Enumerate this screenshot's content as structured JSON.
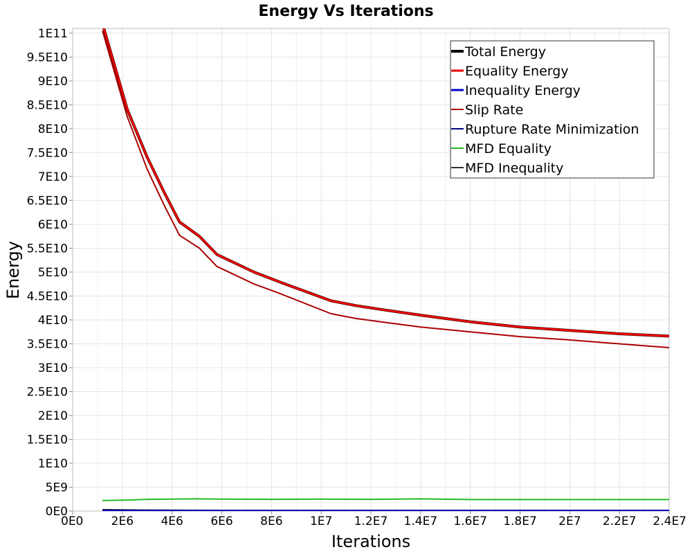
{
  "chart_data": {
    "type": "line",
    "title": "Energy Vs Iterations",
    "xlabel": "Iterations",
    "ylabel": "Energy",
    "xlim": [
      0,
      24000000
    ],
    "ylim": [
      0,
      101000000000
    ],
    "grid": true,
    "legend_position": "top-right",
    "x_ticks": [
      {
        "value": 0,
        "label": "0E0"
      },
      {
        "value": 2000000,
        "label": "2E6"
      },
      {
        "value": 4000000,
        "label": "4E6"
      },
      {
        "value": 6000000,
        "label": "6E6"
      },
      {
        "value": 8000000,
        "label": "8E6"
      },
      {
        "value": 10000000,
        "label": "1E7"
      },
      {
        "value": 12000000,
        "label": "1.2E7"
      },
      {
        "value": 14000000,
        "label": "1.4E7"
      },
      {
        "value": 16000000,
        "label": "1.6E7"
      },
      {
        "value": 18000000,
        "label": "1.8E7"
      },
      {
        "value": 20000000,
        "label": "2E7"
      },
      {
        "value": 22000000,
        "label": "2.2E7"
      },
      {
        "value": 24000000,
        "label": "2.4E7"
      }
    ],
    "y_ticks": [
      {
        "value": 0,
        "label": "0E0"
      },
      {
        "value": 5000000000,
        "label": "5E9"
      },
      {
        "value": 10000000000,
        "label": "1E10"
      },
      {
        "value": 15000000000,
        "label": "1.5E10"
      },
      {
        "value": 20000000000,
        "label": "2E10"
      },
      {
        "value": 25000000000,
        "label": "2.5E10"
      },
      {
        "value": 30000000000,
        "label": "3E10"
      },
      {
        "value": 35000000000,
        "label": "3.5E10"
      },
      {
        "value": 40000000000,
        "label": "4E10"
      },
      {
        "value": 45000000000,
        "label": "4.5E10"
      },
      {
        "value": 50000000000,
        "label": "5E10"
      },
      {
        "value": 55000000000,
        "label": "5.5E10"
      },
      {
        "value": 60000000000,
        "label": "6E10"
      },
      {
        "value": 65000000000,
        "label": "6.5E10"
      },
      {
        "value": 70000000000,
        "label": "7E10"
      },
      {
        "value": 75000000000,
        "label": "7.5E10"
      },
      {
        "value": 80000000000,
        "label": "8E10"
      },
      {
        "value": 85000000000,
        "label": "8.5E10"
      },
      {
        "value": 90000000000,
        "label": "9E10"
      },
      {
        "value": 95000000000,
        "label": "9.5E10"
      },
      {
        "value": 100000000000,
        "label": "1E11"
      }
    ],
    "series": [
      {
        "name": "Total Energy",
        "color": "#000000",
        "width": 4,
        "points": [
          [
            1200000,
            102000000000
          ],
          [
            2200000,
            84000000000
          ],
          [
            3000000,
            74000000000
          ],
          [
            3700000,
            66500000000
          ],
          [
            4300000,
            60500000000
          ],
          [
            5100000,
            57500000000
          ],
          [
            5800000,
            53700000000
          ],
          [
            7300000,
            50000000000
          ],
          [
            8500000,
            47600000000
          ],
          [
            10400000,
            44000000000
          ],
          [
            11400000,
            43000000000
          ],
          [
            12400000,
            42200000000
          ],
          [
            14000000,
            41000000000
          ],
          [
            16000000,
            39600000000
          ],
          [
            18000000,
            38500000000
          ],
          [
            20000000,
            37800000000
          ],
          [
            22000000,
            37100000000
          ],
          [
            24000000,
            36600000000
          ]
        ]
      },
      {
        "name": "Equality Energy",
        "color": "#ee0000",
        "width": 3,
        "points": [
          [
            1200000,
            102000000000
          ],
          [
            2200000,
            84000000000
          ],
          [
            3000000,
            74000000000
          ],
          [
            3700000,
            66500000000
          ],
          [
            4300000,
            60500000000
          ],
          [
            5100000,
            57500000000
          ],
          [
            5800000,
            53700000000
          ],
          [
            7300000,
            50000000000
          ],
          [
            8500000,
            47600000000
          ],
          [
            10400000,
            44000000000
          ],
          [
            11400000,
            43000000000
          ],
          [
            12400000,
            42200000000
          ],
          [
            14000000,
            41000000000
          ],
          [
            16000000,
            39600000000
          ],
          [
            18000000,
            38500000000
          ],
          [
            20000000,
            37800000000
          ],
          [
            22000000,
            37100000000
          ],
          [
            24000000,
            36600000000
          ]
        ]
      },
      {
        "name": "Inequality Energy",
        "color": "#0000cc",
        "width": 3,
        "points": [
          [
            1200000,
            0
          ],
          [
            24000000,
            0
          ]
        ]
      },
      {
        "name": "Slip Rate",
        "color": "#aa0000",
        "width": 2,
        "points": [
          [
            1200000,
            100500000000
          ],
          [
            2200000,
            82500000000
          ],
          [
            3000000,
            71500000000
          ],
          [
            3700000,
            63800000000
          ],
          [
            4300000,
            57700000000
          ],
          [
            5100000,
            55000000000
          ],
          [
            5800000,
            51200000000
          ],
          [
            7300000,
            47500000000
          ],
          [
            8200000,
            45800000000
          ],
          [
            10400000,
            41300000000
          ],
          [
            11400000,
            40300000000
          ],
          [
            12400000,
            39600000000
          ],
          [
            14000000,
            38500000000
          ],
          [
            16000000,
            37500000000
          ],
          [
            18000000,
            36500000000
          ],
          [
            20000000,
            35800000000
          ],
          [
            22000000,
            35000000000
          ],
          [
            24000000,
            34200000000
          ]
        ]
      },
      {
        "name": "Rupture Rate Minimization",
        "color": "#000080",
        "width": 2,
        "points": [
          [
            1200000,
            150000000
          ],
          [
            24000000,
            150000000
          ]
        ]
      },
      {
        "name": "MFD Equality",
        "color": "#22bb22",
        "width": 2,
        "points": [
          [
            1200000,
            2200000000
          ],
          [
            2200000,
            2300000000
          ],
          [
            3000000,
            2450000000
          ],
          [
            4000000,
            2500000000
          ],
          [
            5000000,
            2550000000
          ],
          [
            6000000,
            2500000000
          ],
          [
            8000000,
            2450000000
          ],
          [
            10000000,
            2500000000
          ],
          [
            12000000,
            2450000000
          ],
          [
            14000000,
            2550000000
          ],
          [
            16000000,
            2400000000
          ],
          [
            18000000,
            2400000000
          ],
          [
            20000000,
            2400000000
          ],
          [
            22000000,
            2400000000
          ],
          [
            24000000,
            2400000000
          ]
        ]
      },
      {
        "name": "MFD Inequality",
        "color": "#333333",
        "width": 2,
        "points": [
          [
            1200000,
            300000000
          ],
          [
            3000000,
            200000000
          ],
          [
            6000000,
            150000000
          ],
          [
            24000000,
            100000000
          ]
        ]
      }
    ]
  }
}
